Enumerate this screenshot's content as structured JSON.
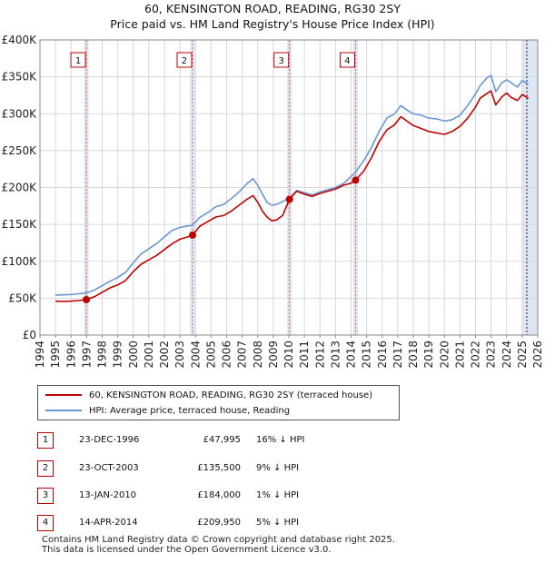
{
  "title_line1": "60, KENSINGTON ROAD, READING, RG30 2SY",
  "title_line2": "Price paid vs. HM Land Registry's House Price Index (HPI)",
  "colors": {
    "property": "#c00000",
    "hpi": "#6a96d4",
    "shade": "#dde6f5",
    "vline": "#e06666"
  },
  "chart_data": {
    "type": "line",
    "title": "Price paid vs. HM Land Registry's House Price Index (HPI)",
    "ylim": [
      0,
      400000
    ],
    "xlim": [
      1994,
      2026
    ],
    "y_ticks": [
      {
        "value": 0,
        "label": "£0"
      },
      {
        "value": 50000,
        "label": "£50K"
      },
      {
        "value": 100000,
        "label": "£100K"
      },
      {
        "value": 150000,
        "label": "£150K"
      },
      {
        "value": 200000,
        "label": "£200K"
      },
      {
        "value": 250000,
        "label": "£250K"
      },
      {
        "value": 300000,
        "label": "£300K"
      },
      {
        "value": 350000,
        "label": "£350K"
      },
      {
        "value": 400000,
        "label": "£400K"
      }
    ],
    "x_ticks": [
      "1994",
      "1995",
      "1996",
      "1997",
      "1998",
      "1999",
      "2000",
      "2001",
      "2002",
      "2003",
      "2004",
      "2005",
      "2006",
      "2007",
      "2008",
      "2009",
      "2010",
      "2011",
      "2012",
      "2013",
      "2014",
      "2015",
      "2016",
      "2017",
      "2018",
      "2019",
      "2020",
      "2021",
      "2022",
      "2023",
      "2024",
      "2025",
      "2026"
    ],
    "series": [
      {
        "name": "60, KENSINGTON ROAD, READING, RG30 2SY (terraced house)",
        "x": [
          1995.0,
          1995.5,
          1996.0,
          1996.5,
          1996.98,
          1997.5,
          1998.0,
          1998.5,
          1999.0,
          1999.5,
          2000.0,
          2000.5,
          2001.0,
          2001.5,
          2002.0,
          2002.5,
          2003.0,
          2003.5,
          2003.81,
          2004.3,
          2004.8,
          2005.3,
          2005.8,
          2006.3,
          2006.8,
          2007.3,
          2007.7,
          2008.0,
          2008.3,
          2008.6,
          2008.9,
          2009.2,
          2009.6,
          2010.04,
          2010.5,
          2011.0,
          2011.5,
          2012.0,
          2012.5,
          2013.0,
          2013.5,
          2014.0,
          2014.29,
          2014.8,
          2015.3,
          2015.8,
          2016.3,
          2016.8,
          2017.2,
          2017.6,
          2018.0,
          2018.5,
          2019.0,
          2019.5,
          2020.0,
          2020.5,
          2021.0,
          2021.5,
          2022.0,
          2022.3,
          2022.7,
          2023.0,
          2023.3,
          2023.7,
          2024.0,
          2024.3,
          2024.7,
          2025.0,
          2025.4
        ],
        "values": [
          46000,
          45500,
          46000,
          46800,
          47995,
          52000,
          58000,
          64000,
          68000,
          74000,
          86000,
          96000,
          102000,
          108000,
          116000,
          124000,
          130000,
          133000,
          135500,
          148000,
          154000,
          160000,
          162000,
          168000,
          176000,
          184000,
          189000,
          180000,
          168000,
          160000,
          155000,
          156000,
          162000,
          184000,
          195000,
          191000,
          188000,
          192000,
          195000,
          198000,
          203000,
          206000,
          209950,
          222000,
          240000,
          262000,
          278000,
          285000,
          296000,
          290000,
          284000,
          280000,
          276000,
          274000,
          272000,
          276000,
          283000,
          294000,
          309000,
          321000,
          327000,
          331000,
          312000,
          323000,
          328000,
          322000,
          318000,
          326000,
          321000
        ]
      },
      {
        "name": "HPI: Average price, terraced house, Reading",
        "x": [
          1995.0,
          1995.5,
          1996.0,
          1996.5,
          1996.98,
          1997.5,
          1998.0,
          1998.5,
          1999.0,
          1999.5,
          2000.0,
          2000.5,
          2001.0,
          2001.5,
          2002.0,
          2002.5,
          2003.0,
          2003.5,
          2003.81,
          2004.3,
          2004.8,
          2005.3,
          2005.8,
          2006.3,
          2006.8,
          2007.3,
          2007.7,
          2008.0,
          2008.3,
          2008.6,
          2008.9,
          2009.2,
          2009.6,
          2010.04,
          2010.5,
          2011.0,
          2011.5,
          2012.0,
          2012.5,
          2013.0,
          2013.5,
          2014.0,
          2014.29,
          2014.8,
          2015.3,
          2015.8,
          2016.3,
          2016.8,
          2017.2,
          2017.6,
          2018.0,
          2018.5,
          2019.0,
          2019.5,
          2020.0,
          2020.5,
          2021.0,
          2021.5,
          2022.0,
          2022.3,
          2022.7,
          2023.0,
          2023.3,
          2023.7,
          2024.0,
          2024.3,
          2024.7,
          2025.0,
          2025.4
        ],
        "values": [
          54000,
          54500,
          55000,
          56000,
          57100,
          61000,
          67000,
          73000,
          78000,
          85000,
          98000,
          110000,
          117000,
          124000,
          133000,
          142000,
          146000,
          148000,
          148900,
          160000,
          166000,
          174000,
          177000,
          185000,
          194000,
          205000,
          212000,
          203000,
          191000,
          180000,
          176000,
          177000,
          181000,
          186000,
          196000,
          193000,
          190000,
          194000,
          197000,
          200000,
          205000,
          215000,
          221000,
          236000,
          254000,
          276000,
          294000,
          300000,
          311000,
          305000,
          300000,
          298000,
          294000,
          293000,
          290000,
          292000,
          298000,
          311000,
          327000,
          338000,
          348000,
          352000,
          330000,
          342000,
          346000,
          342000,
          336000,
          345000,
          340000
        ]
      }
    ],
    "transactions": [
      {
        "num": "1",
        "date": "23-DEC-1996",
        "price": "£47,995",
        "hpi": "16% ↓ HPI",
        "x": 1996.98,
        "value": 47995
      },
      {
        "num": "2",
        "date": "23-OCT-2003",
        "price": "£135,500",
        "hpi": "9% ↓ HPI",
        "x": 2003.81,
        "value": 135500
      },
      {
        "num": "3",
        "date": "13-JAN-2010",
        "price": "£184,000",
        "hpi": "1% ↓ HPI",
        "x": 2010.04,
        "value": 184000
      },
      {
        "num": "4",
        "date": "14-APR-2014",
        "price": "£209,950",
        "hpi": "5% ↓ HPI",
        "x": 2014.29,
        "value": 209950
      }
    ]
  },
  "legend": {
    "property_label": "60, KENSINGTON ROAD, READING, RG30 2SY (terraced house)",
    "hpi_label": "HPI: Average price, terraced house, Reading"
  },
  "footer_line1": "Contains HM Land Registry data © Crown copyright and database right 2025.",
  "footer_line2": "This data is licensed under the Open Government Licence v3.0."
}
